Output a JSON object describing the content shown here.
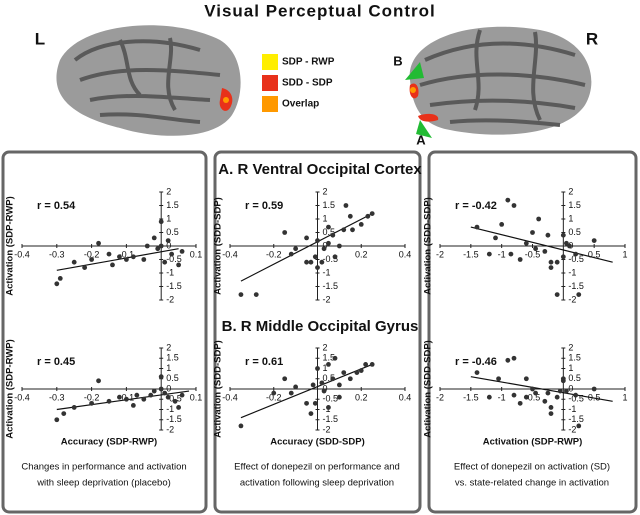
{
  "figure": {
    "title": "Visual Perceptual Control",
    "left_label": "L",
    "right_label": "R",
    "legend": [
      {
        "label": "SDP - RWP",
        "color": "#ffee00"
      },
      {
        "label": "SDD - SDP",
        "color": "#e8311a"
      },
      {
        "label": "Overlap",
        "color": "#ff9900"
      }
    ],
    "arrow_labels": [
      "B",
      "A"
    ],
    "sections": [
      "A. R Ventral Occipital Cortex",
      "B. R Middle Occipital Gyrus"
    ],
    "captions": [
      [
        "Changes in performance and activation",
        "with sleep deprivation (placebo)"
      ],
      [
        "Effect of donepezil on performance and",
        "activation following sleep deprivation"
      ],
      [
        "Effect of donepezil on activation (SD)",
        "vs. state-related change in activation"
      ]
    ]
  },
  "chart_data": [
    {
      "type": "scatter",
      "r_label": "r = 0.54",
      "y_label": "Activation (SDP-RWP)",
      "color": "#333333",
      "xlim": [
        -0.4,
        0.1
      ],
      "ylim": [
        -2,
        2
      ],
      "xticks": [
        -0.4,
        -0.3,
        -0.2,
        -0.1,
        0.1
      ],
      "yticks": [
        -2,
        -1.5,
        -1,
        -0.5,
        0,
        0.5,
        1,
        1.5,
        2
      ],
      "x": [
        -0.3,
        -0.29,
        -0.25,
        -0.2,
        -0.18,
        -0.15,
        -0.12,
        -0.1,
        -0.08,
        -0.05,
        -0.04,
        -0.02,
        -0.01,
        0,
        0,
        0.02,
        0.03,
        0.05,
        0.06,
        0.01,
        -0.14,
        -0.22
      ],
      "values": [
        -1.4,
        -1.2,
        -0.6,
        -0.5,
        0.1,
        -0.3,
        -0.4,
        -0.5,
        -0.4,
        -0.5,
        0,
        0.3,
        -0.1,
        0,
        0.9,
        0.2,
        -0.3,
        -0.7,
        -0.2,
        -0.6,
        -0.7,
        -0.8
      ],
      "fit": {
        "x": [
          -0.3,
          0.05
        ],
        "y": [
          -0.9,
          -0.1
        ]
      }
    },
    {
      "type": "scatter",
      "r_label": "r = 0.59",
      "y_label": "Activation (SDD-SDP)",
      "color": "#333333",
      "xlim": [
        -0.4,
        0.4
      ],
      "ylim": [
        -2,
        2
      ],
      "xticks": [
        -0.4,
        -0.2,
        0.2,
        0.4
      ],
      "yticks": [
        -2,
        -1.5,
        -1,
        -0.5,
        0,
        0.5,
        1,
        1.5,
        2
      ],
      "x": [
        -0.35,
        -0.28,
        -0.15,
        -0.12,
        -0.1,
        -0.05,
        -0.03,
        -0.01,
        0,
        0.02,
        0.03,
        0.05,
        0.05,
        0.07,
        0.08,
        0.1,
        0.12,
        0.13,
        0.15,
        0.16,
        0.2,
        0.23,
        0.25,
        -0.05,
        0
      ],
      "values": [
        -1.8,
        -1.8,
        0.5,
        -0.3,
        -0.1,
        -0.6,
        -0.6,
        -0.4,
        0.2,
        -0.6,
        -0.1,
        0.1,
        0.7,
        0.4,
        -0.4,
        0,
        0.6,
        1.5,
        1.1,
        0.6,
        0.8,
        1.1,
        1.2,
        0.3,
        -0.8
      ],
      "fit": {
        "x": [
          -0.35,
          0.25
        ],
        "y": [
          -1.3,
          1.2
        ]
      }
    },
    {
      "type": "scatter",
      "r_label": "r = -0.42",
      "y_label": "Activation (SDD-SDP)",
      "color": "#333333",
      "xlim": [
        -2,
        1
      ],
      "ylim": [
        -2,
        2
      ],
      "xticks": [
        -2,
        -1.5,
        -1,
        -0.5,
        0.5,
        1
      ],
      "yticks": [
        -2,
        -1.5,
        -1,
        -0.5,
        0,
        0.5,
        1,
        1.5,
        2
      ],
      "x": [
        -1.4,
        -1.2,
        -1.1,
        -0.9,
        -0.8,
        -0.85,
        -0.7,
        -0.6,
        -0.5,
        -0.45,
        -0.3,
        -0.25,
        -0.2,
        -0.2,
        -0.1,
        0,
        0,
        0.1,
        0.05,
        0.2,
        0.25,
        0.5,
        -0.1,
        -0.4,
        -1
      ],
      "values": [
        0.7,
        -0.3,
        0.3,
        1.7,
        1.5,
        -0.3,
        -0.5,
        0.1,
        0.5,
        -0.1,
        -0.2,
        0.4,
        -0.6,
        -0.8,
        -0.6,
        -0.4,
        0.4,
        0,
        0.1,
        -0.3,
        -1.8,
        0.2,
        -1.8,
        1,
        0.8
      ],
      "fit": {
        "x": [
          -1.5,
          0.8
        ],
        "y": [
          0.7,
          -0.6
        ]
      }
    },
    {
      "type": "scatter",
      "r_label": "r = 0.45",
      "y_label": "Activation (SDP-RWP)",
      "x_label": "Accuracy (SDP-RWP)",
      "color": "#333333",
      "xlim": [
        -0.4,
        0.1
      ],
      "ylim": [
        -2,
        2
      ],
      "xticks": [
        -0.4,
        -0.3,
        -0.2,
        -0.1,
        0.1
      ],
      "yticks": [
        -2,
        -1.5,
        -1,
        -0.5,
        0,
        0.5,
        1,
        1.5,
        2
      ],
      "x": [
        -0.3,
        -0.28,
        -0.25,
        -0.2,
        -0.18,
        -0.15,
        -0.12,
        -0.1,
        -0.07,
        -0.05,
        -0.03,
        -0.02,
        0,
        0.01,
        0.02,
        0.04,
        0.05,
        0.06,
        -0.08,
        0
      ],
      "values": [
        -1.5,
        -1.2,
        -0.9,
        -0.7,
        0.4,
        -0.6,
        -0.4,
        -0.5,
        -0.3,
        -0.5,
        -0.3,
        -0.1,
        0.6,
        -0.2,
        -0.4,
        -0.6,
        -0.9,
        -0.3,
        -0.8,
        0
      ],
      "fit": {
        "x": [
          -0.3,
          0.08
        ],
        "y": [
          -1,
          -0.1
        ]
      }
    },
    {
      "type": "scatter",
      "r_label": "r = 0.61",
      "y_label": "Activation (SDD-SDP)",
      "x_label": "Accuracy (SDD-SDP)",
      "color": "#333333",
      "xlim": [
        -0.4,
        0.4
      ],
      "ylim": [
        -2,
        2
      ],
      "xticks": [
        -0.4,
        -0.2,
        0.2,
        0.4
      ],
      "yticks": [
        -2,
        -1.5,
        -1,
        -0.5,
        0,
        0.5,
        1,
        1.5,
        2
      ],
      "x": [
        -0.35,
        -0.2,
        -0.15,
        -0.12,
        -0.1,
        -0.05,
        -0.03,
        -0.01,
        0,
        0.03,
        0.05,
        0.05,
        0.07,
        0.08,
        0.1,
        0.12,
        0.15,
        0.18,
        0.2,
        0.22,
        0.25,
        0.02,
        -0.02,
        0.1
      ],
      "values": [
        -1.8,
        -0.2,
        0.5,
        -0.2,
        0.1,
        -0.7,
        -1.2,
        -0.7,
        1,
        -0.1,
        -0.9,
        1.2,
        0.5,
        1.5,
        0.2,
        0.8,
        0.5,
        0.8,
        0.9,
        1.2,
        1.2,
        0.3,
        0.2,
        -0.4
      ],
      "fit": {
        "x": [
          -0.35,
          0.25
        ],
        "y": [
          -1.4,
          1.2
        ]
      }
    },
    {
      "type": "scatter",
      "r_label": "r = -0.46",
      "y_label": "Activation (SDD-SDP)",
      "x_label": "Activation (SDP-RWP)",
      "color": "#333333",
      "xlim": [
        -2,
        1
      ],
      "ylim": [
        -2,
        2
      ],
      "xticks": [
        -2,
        -1.5,
        -1,
        -0.5,
        0.5,
        1
      ],
      "yticks": [
        -2,
        -1.5,
        -1,
        -0.5,
        0,
        0.5,
        1,
        1.5,
        2
      ],
      "x": [
        -1.4,
        -1.2,
        -1.05,
        -0.9,
        -0.8,
        -0.8,
        -0.7,
        -0.6,
        -0.5,
        -0.45,
        -0.3,
        -0.25,
        -0.2,
        -0.2,
        -0.1,
        -0.05,
        0,
        0,
        0.05,
        0.2,
        0.25,
        0.5,
        -0.6
      ],
      "values": [
        0.8,
        -0.4,
        0.5,
        1.4,
        1.5,
        -0.3,
        -0.7,
        0.5,
        0,
        -0.2,
        -0.6,
        -0.2,
        -1.2,
        -0.9,
        -0.4,
        -0.1,
        0.5,
        0.4,
        -0.1,
        -0.3,
        -1.8,
        0,
        -0.4
      ],
      "fit": {
        "x": [
          -1.5,
          0.8
        ],
        "y": [
          0.6,
          -0.6
        ]
      }
    }
  ]
}
